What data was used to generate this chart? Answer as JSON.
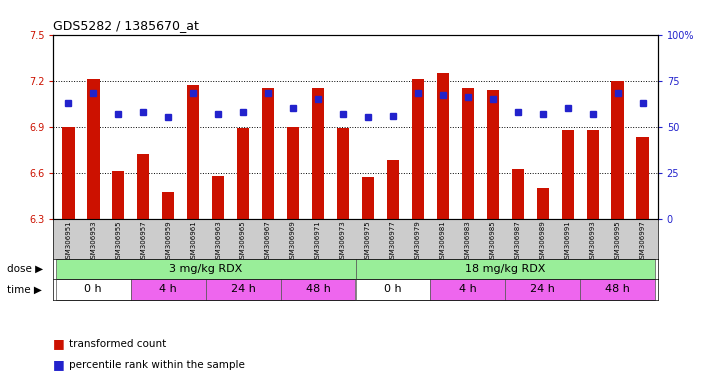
{
  "title": "GDS5282 / 1385670_at",
  "samples": [
    "GSM306951",
    "GSM306953",
    "GSM306955",
    "GSM306957",
    "GSM306959",
    "GSM306961",
    "GSM306963",
    "GSM306965",
    "GSM306967",
    "GSM306969",
    "GSM306971",
    "GSM306973",
    "GSM306975",
    "GSM306977",
    "GSM306979",
    "GSM306981",
    "GSM306983",
    "GSM306985",
    "GSM306987",
    "GSM306989",
    "GSM306991",
    "GSM306993",
    "GSM306995",
    "GSM306997"
  ],
  "bar_values": [
    6.9,
    7.21,
    6.61,
    6.72,
    6.47,
    7.17,
    6.58,
    6.89,
    7.15,
    6.9,
    7.15,
    6.89,
    6.57,
    6.68,
    7.21,
    7.25,
    7.15,
    7.14,
    6.62,
    6.5,
    6.88,
    6.88,
    7.2,
    6.83
  ],
  "percentile_values": [
    63,
    68,
    57,
    58,
    55,
    68,
    57,
    58,
    68,
    60,
    65,
    57,
    55,
    56,
    68,
    67,
    66,
    65,
    58,
    57,
    60,
    57,
    68,
    63
  ],
  "bar_color": "#cc1100",
  "percentile_color": "#2222cc",
  "ylim_left": [
    6.3,
    7.5
  ],
  "ylim_right": [
    0,
    100
  ],
  "yticks_left": [
    6.3,
    6.6,
    6.9,
    7.2,
    7.5
  ],
  "yticks_right": [
    0,
    25,
    50,
    75,
    100
  ],
  "hlines": [
    6.6,
    6.9,
    7.2
  ],
  "dose_labels": [
    "3 mg/kg RDX",
    "18 mg/kg RDX"
  ],
  "dose_ranges": [
    [
      0,
      12
    ],
    [
      12,
      24
    ]
  ],
  "dose_color": "#99ee99",
  "time_labels": [
    "0 h",
    "4 h",
    "24 h",
    "48 h",
    "0 h",
    "4 h",
    "24 h",
    "48 h"
  ],
  "time_ranges": [
    [
      0,
      3
    ],
    [
      3,
      6
    ],
    [
      6,
      9
    ],
    [
      9,
      12
    ],
    [
      12,
      15
    ],
    [
      15,
      18
    ],
    [
      18,
      21
    ],
    [
      21,
      24
    ]
  ],
  "time_colors": [
    "#ffffff",
    "#ee66ee",
    "#ee66ee",
    "#ee66ee",
    "#ffffff",
    "#ee66ee",
    "#ee66ee",
    "#ee66ee"
  ],
  "bg_color": "#ffffff",
  "tick_label_bg": "#cccccc",
  "legend_tc": "transformed count",
  "legend_pr": "percentile rank within the sample",
  "left_tick_color": "#cc1100",
  "right_tick_color": "#2222cc"
}
